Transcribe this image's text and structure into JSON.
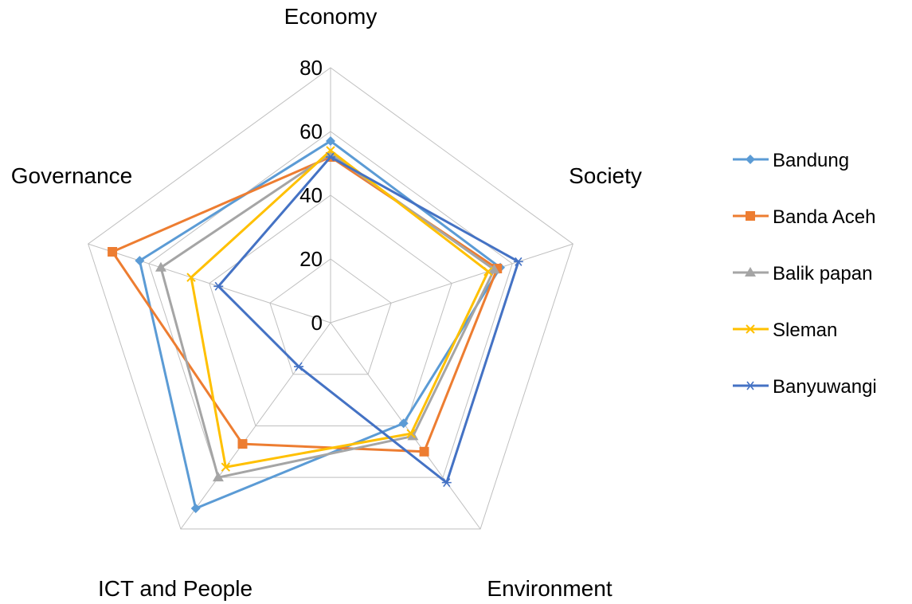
{
  "chart_data": {
    "type": "radar",
    "axes": [
      "Economy",
      "Society",
      "Environment",
      "ICT and People",
      "Governance"
    ],
    "rlim": [
      0,
      80
    ],
    "ticks": [
      0,
      20,
      40,
      60,
      80
    ],
    "grid": true,
    "legend_position": "right",
    "series": [
      {
        "name": "Bandung",
        "values": [
          57,
          56,
          39,
          72,
          63
        ],
        "color": "#5B9BD5",
        "marker": "diamond"
      },
      {
        "name": "Banda Aceh",
        "values": [
          52,
          55,
          50,
          47,
          72
        ],
        "color": "#ED7D31",
        "marker": "square"
      },
      {
        "name": "Balik papan",
        "values": [
          53,
          54,
          44,
          60,
          56
        ],
        "color": "#A5A5A5",
        "marker": "triangle"
      },
      {
        "name": "Sleman",
        "values": [
          54,
          52,
          43,
          56,
          46
        ],
        "color": "#FFC000",
        "marker": "x"
      },
      {
        "name": "Banyuwangi",
        "values": [
          52,
          62,
          62,
          17,
          37
        ],
        "color": "#4472C4",
        "marker": "star"
      }
    ]
  }
}
